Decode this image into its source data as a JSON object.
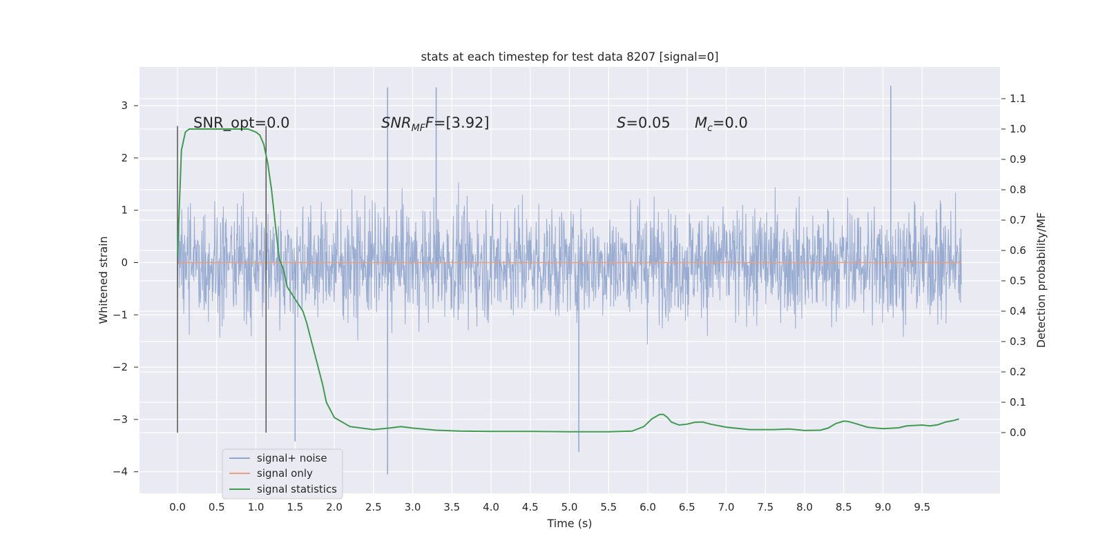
{
  "chart_data": {
    "type": "line",
    "title": "stats at each timestep for test data 8207 [signal=0]",
    "xlabel": "Time (s)",
    "ylabel_left": "Whitened strain",
    "ylabel_right": "Detection probability/MF",
    "xlim": [
      -0.5,
      10.5
    ],
    "ylim_left": [
      -4.4,
      3.7
    ],
    "ylim_right": [
      -0.2,
      1.2
    ],
    "x_ticks": [
      "0.0",
      "0.5",
      "1.0",
      "1.5",
      "2.0",
      "2.5",
      "3.0",
      "3.5",
      "4.0",
      "4.5",
      "5.0",
      "5.5",
      "6.0",
      "6.5",
      "7.0",
      "7.5",
      "8.0",
      "8.5",
      "9.0",
      "9.5"
    ],
    "y_ticks_left": [
      "−4",
      "−3",
      "−2",
      "−1",
      "0",
      "1",
      "2",
      "3"
    ],
    "y_ticks_right": [
      "0.0",
      "0.1",
      "0.2",
      "0.3",
      "0.4",
      "0.5",
      "0.6",
      "0.7",
      "0.8",
      "0.9",
      "1.0",
      "1.1"
    ],
    "grid": true,
    "legend_position": "lower-left",
    "annotations": {
      "snr_opt": "SNR_opt=0.0",
      "snr_mf_symbol": "SNR",
      "snr_mf_sub": "MF",
      "snr_mf_value": "=[3.92]",
      "s_symbol": "S",
      "s_value": "=0.05",
      "mc_symbol": "M",
      "mc_sub": "c",
      "mc_value": "=0.0"
    },
    "vertical_lines_x": [
      0.0,
      1.13
    ],
    "series": [
      {
        "name": "signal+ noise",
        "color": "#8fa4cc",
        "axis": "left",
        "description_range": [
          -3.7,
          3.4
        ],
        "x_range": [
          0.0,
          10.0
        ],
        "notable_peaks": [
          {
            "x": 2.68,
            "y": 3.35
          },
          {
            "x": 3.3,
            "y": 3.35
          },
          {
            "x": 9.1,
            "y": 3.38
          },
          {
            "x": 2.68,
            "y": -4.05
          },
          {
            "x": 5.12,
            "y": -3.62
          },
          {
            "x": 1.5,
            "y": -3.42
          }
        ]
      },
      {
        "name": "signal only",
        "color": "#e8a07e",
        "axis": "left",
        "x": [
          0.0,
          10.0
        ],
        "values": [
          0.0,
          0.0
        ]
      },
      {
        "name": "signal statistics",
        "color": "#3f9b4f",
        "axis": "right",
        "x": [
          0.0,
          0.05,
          0.1,
          0.15,
          0.2,
          0.3,
          0.5,
          0.7,
          0.9,
          1.0,
          1.05,
          1.1,
          1.15,
          1.2,
          1.25,
          1.3,
          1.35,
          1.4,
          1.45,
          1.5,
          1.55,
          1.6,
          1.65,
          1.7,
          1.75,
          1.8,
          1.85,
          1.9,
          2.0,
          2.2,
          2.5,
          2.7,
          2.85,
          3.0,
          3.3,
          3.6,
          4.0,
          4.5,
          5.0,
          5.5,
          5.8,
          5.95,
          6.05,
          6.15,
          6.2,
          6.25,
          6.3,
          6.4,
          6.5,
          6.6,
          6.7,
          6.8,
          7.0,
          7.3,
          7.6,
          7.8,
          8.0,
          8.2,
          8.3,
          8.4,
          8.5,
          8.55,
          8.65,
          8.8,
          9.0,
          9.2,
          9.3,
          9.5,
          9.6,
          9.7,
          9.8,
          9.9,
          9.97
        ],
        "values": [
          0.58,
          0.93,
          0.99,
          1.0,
          1.0,
          1.0,
          1.0,
          1.0,
          1.0,
          0.99,
          0.98,
          0.95,
          0.89,
          0.8,
          0.68,
          0.57,
          0.54,
          0.48,
          0.46,
          0.44,
          0.42,
          0.4,
          0.36,
          0.31,
          0.26,
          0.21,
          0.16,
          0.1,
          0.05,
          0.02,
          0.01,
          0.015,
          0.02,
          0.015,
          0.008,
          0.005,
          0.004,
          0.004,
          0.003,
          0.003,
          0.005,
          0.02,
          0.045,
          0.06,
          0.06,
          0.05,
          0.035,
          0.025,
          0.028,
          0.034,
          0.035,
          0.028,
          0.018,
          0.01,
          0.01,
          0.012,
          0.007,
          0.008,
          0.015,
          0.03,
          0.038,
          0.037,
          0.03,
          0.018,
          0.013,
          0.016,
          0.022,
          0.025,
          0.022,
          0.026,
          0.035,
          0.04,
          0.045
        ]
      }
    ]
  }
}
